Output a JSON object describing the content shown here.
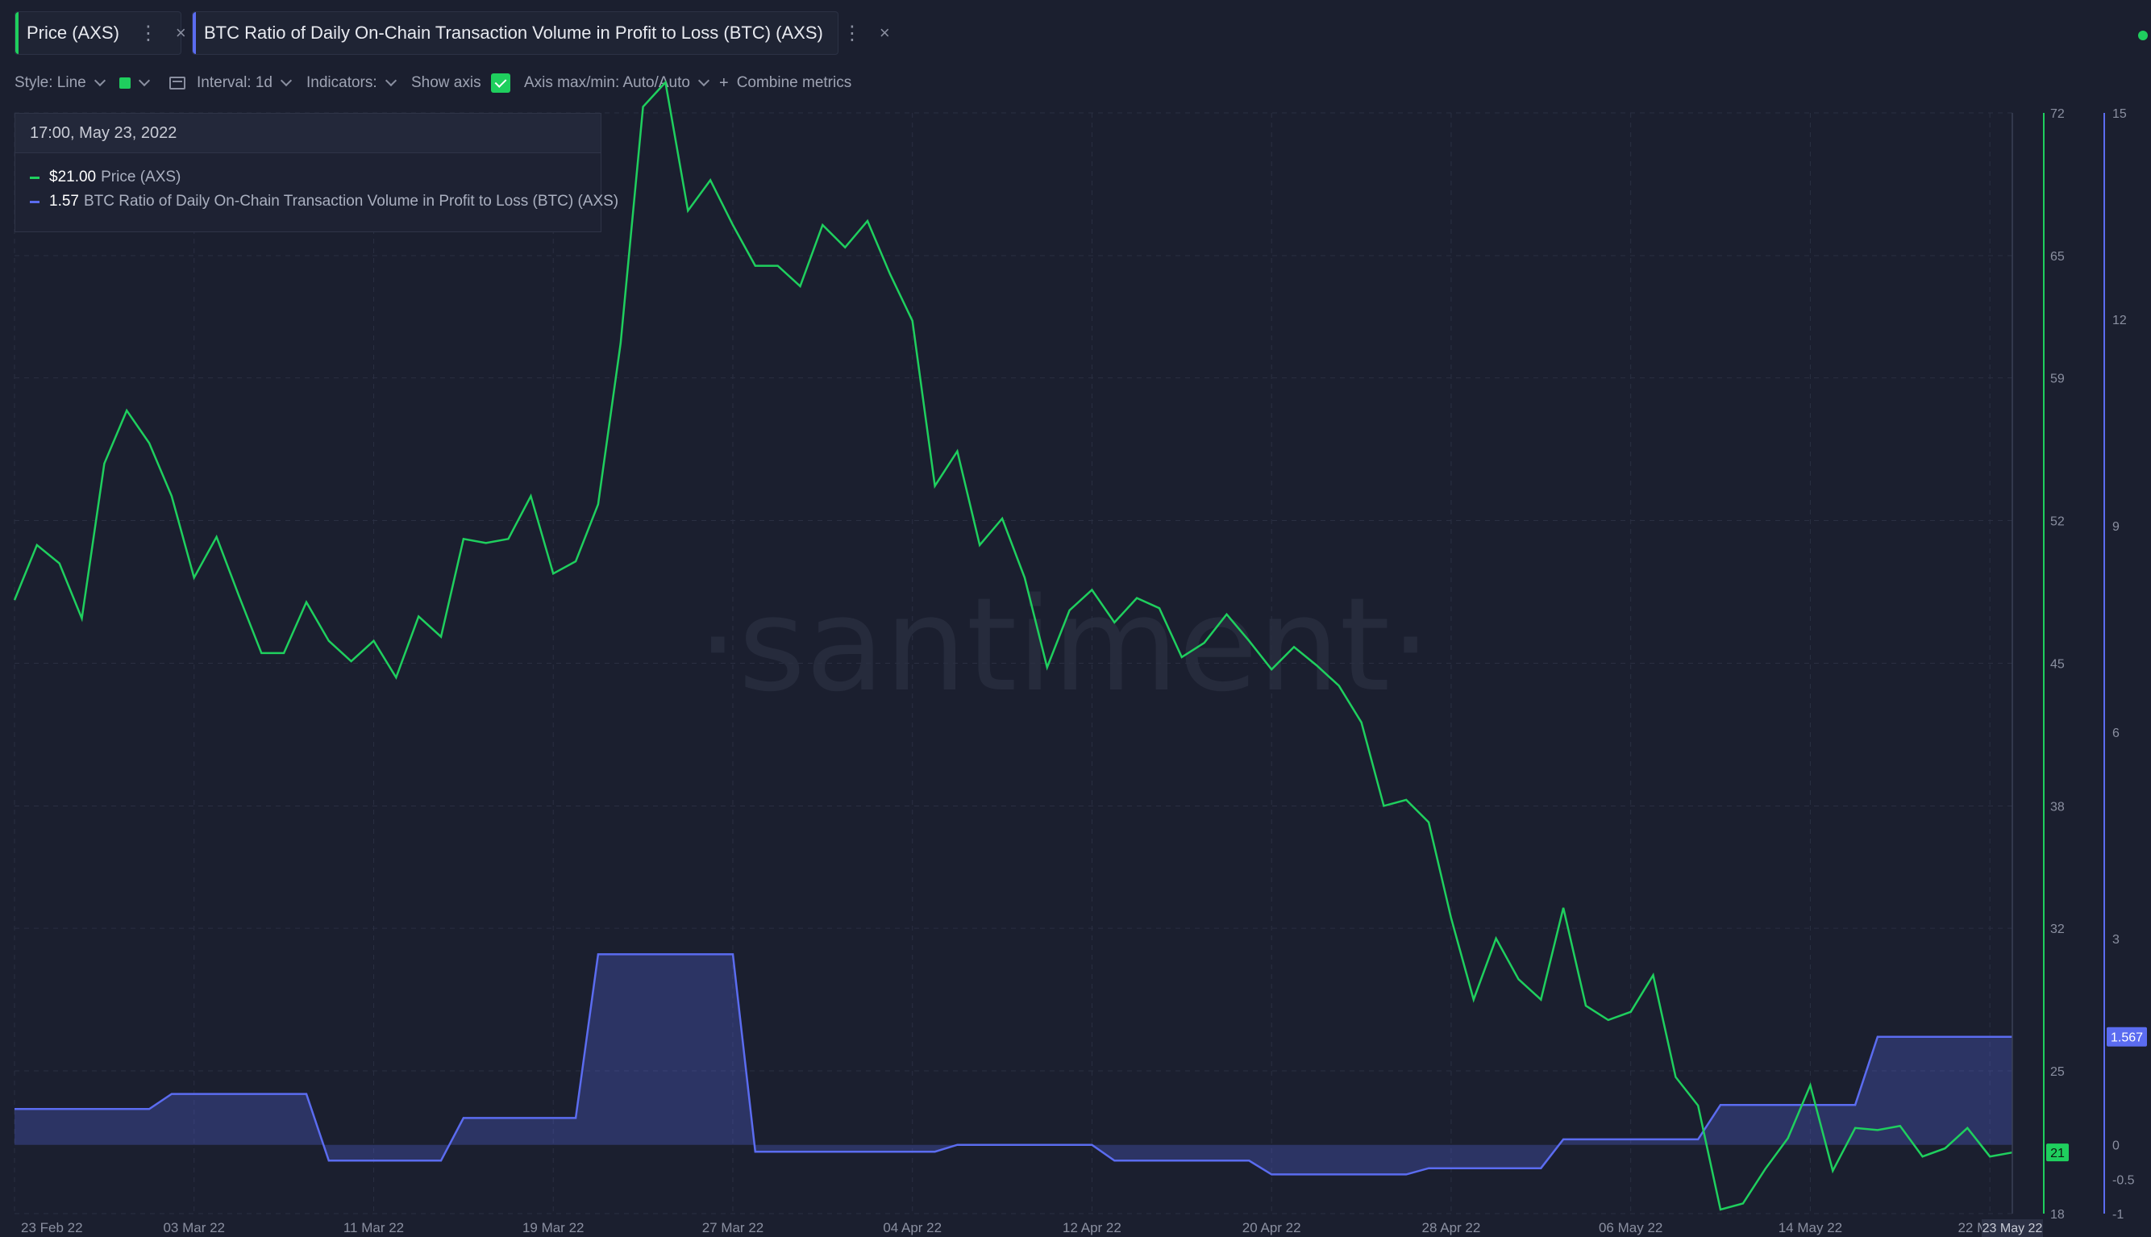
{
  "tabs": [
    {
      "label": "Price (AXS)",
      "color": "#1fcf5e"
    },
    {
      "label": "BTC Ratio of Daily On-Chain Transaction Volume in Profit to Loss (BTC) (AXS)",
      "color": "#5b6cf0"
    }
  ],
  "toolbar": {
    "style": "Style: Line",
    "interval": "Interval: 1d",
    "indicators": "Indicators:",
    "show_axis": "Show axis",
    "axis_maxmin": "Axis max/min: Auto/Auto",
    "combine": "Combine metrics"
  },
  "tooltip": {
    "date": "17:00, May 23, 2022",
    "rows": [
      {
        "value": "$21.00",
        "name": "Price (AXS)"
      },
      {
        "value": "1.57",
        "name": "BTC Ratio of Daily On-Chain Transaction Volume in Profit to Loss (BTC) (AXS)"
      }
    ]
  },
  "watermark": "·santiment·",
  "chart_data": {
    "type": "line",
    "x_labels": [
      "23 Feb 22",
      "03 Mar 22",
      "11 Mar 22",
      "19 Mar 22",
      "27 Mar 22",
      "04 Apr 22",
      "12 Apr 22",
      "20 Apr 22",
      "28 Apr 22",
      "06 May 22",
      "14 May 22",
      "22 May 22"
    ],
    "x_range": [
      "2022-02-23",
      "2022-05-23"
    ],
    "hover_date_label": "23 May 22",
    "grid": true,
    "legend": "top-left tooltip",
    "series": [
      {
        "name": "Price (AXS)",
        "color": "#1fcf5e",
        "axis": "left-price",
        "ticks": [
          18,
          25,
          32,
          38,
          45,
          52,
          59,
          65,
          72
        ],
        "ylim": [
          18,
          72
        ],
        "last_value_label": "21",
        "values": [
          48.1,
          50.8,
          49.9,
          47.2,
          54.8,
          57.4,
          55.8,
          53.2,
          49.2,
          51.2,
          48.3,
          45.5,
          45.5,
          48.0,
          46.1,
          45.1,
          46.1,
          44.3,
          47.3,
          46.3,
          51.1,
          50.9,
          51.1,
          53.2,
          49.4,
          50.0,
          52.8,
          60.7,
          72.3,
          73.5,
          67.2,
          68.7,
          66.5,
          64.5,
          64.5,
          63.5,
          66.5,
          65.4,
          66.7,
          64.1,
          61.8,
          53.7,
          55.4,
          50.8,
          52.1,
          49.2,
          44.8,
          47.6,
          48.6,
          47.0,
          48.2,
          47.7,
          45.3,
          46.0,
          47.4,
          46.1,
          44.7,
          45.8,
          44.9,
          43.9,
          42.1,
          38.0,
          38.3,
          37.2,
          32.5,
          28.5,
          31.5,
          29.5,
          28.5,
          33.0,
          28.2,
          27.5,
          27.9,
          29.7,
          24.7,
          23.3,
          18.2,
          18.5,
          20.2,
          21.7,
          24.3,
          20.1,
          22.2,
          22.1,
          22.3,
          20.8,
          21.2,
          22.2,
          20.8,
          21.0
        ]
      },
      {
        "name": "BTC Ratio of Daily On-Chain Transaction Volume in Profit to Loss (BTC) (AXS)",
        "color": "#5b6cf0",
        "axis": "right",
        "ticks": [
          -1,
          -0.5,
          0,
          3,
          6,
          9,
          12,
          15
        ],
        "ylim": [
          -1,
          15
        ],
        "last_value_label": "1.567",
        "values": [
          0.52,
          0.52,
          0.52,
          0.52,
          0.52,
          0.52,
          0.52,
          0.74,
          0.74,
          0.74,
          0.74,
          0.74,
          0.74,
          0.74,
          -0.23,
          -0.23,
          -0.23,
          -0.23,
          -0.23,
          -0.23,
          0.39,
          0.39,
          0.39,
          0.39,
          0.39,
          0.39,
          2.77,
          2.77,
          2.77,
          2.77,
          2.77,
          2.77,
          2.77,
          -0.1,
          -0.1,
          -0.1,
          -0.1,
          -0.1,
          -0.1,
          -0.1,
          -0.1,
          -0.1,
          0.0,
          0.0,
          0.0,
          0.0,
          0.0,
          0.0,
          0.0,
          -0.23,
          -0.23,
          -0.23,
          -0.23,
          -0.23,
          -0.23,
          -0.23,
          -0.43,
          -0.43,
          -0.43,
          -0.43,
          -0.43,
          -0.43,
          -0.43,
          -0.34,
          -0.34,
          -0.34,
          -0.34,
          -0.34,
          -0.34,
          0.08,
          0.08,
          0.08,
          0.08,
          0.08,
          0.08,
          0.08,
          0.58,
          0.58,
          0.58,
          0.58,
          0.58,
          0.58,
          0.58,
          1.57,
          1.57,
          1.57,
          1.57,
          1.57,
          1.57,
          1.57
        ]
      }
    ]
  }
}
